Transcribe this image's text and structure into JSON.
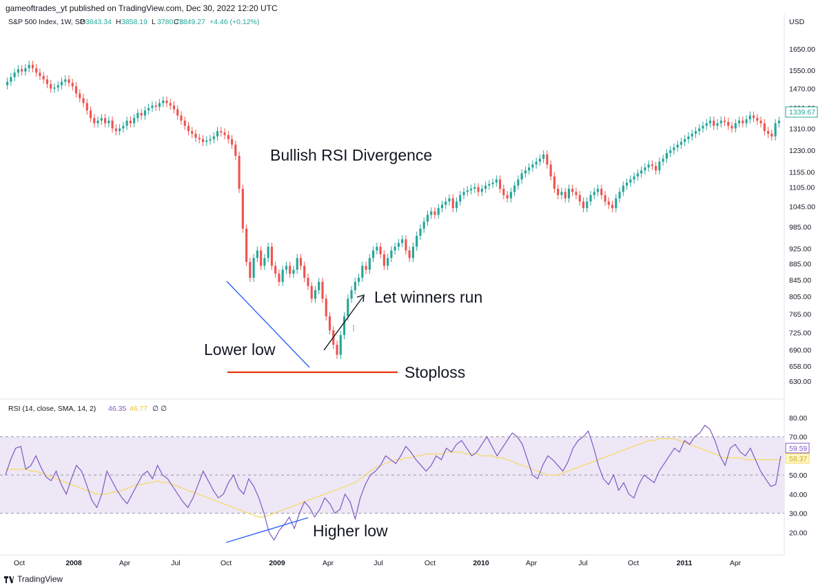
{
  "header": {
    "published": "gameoftrades_yt published on TradingView.com, Dec 30, 2022 12:20 UTC"
  },
  "legend": {
    "symbol": "S&P 500 Index, 1W, SP",
    "o_label": "O",
    "o_value": "3843.34",
    "h_label": "H",
    "h_value": "3858.19",
    "l_label": "L",
    "l_value": "3780.78",
    "c_label": "C",
    "c_value": "3849.27",
    "change": "+4.46 (+0.12%)"
  },
  "rsi_legend": {
    "label": "RSI (14, close, SMA, 14, 2)",
    "rsi_value": "46.35",
    "sma_value": "46.77",
    "extra1": "∅",
    "extra2": "∅"
  },
  "annotations": {
    "title": "Bullish RSI Divergence",
    "lower_low": "Lower low",
    "let_winners_run": "Let winners run",
    "stoploss": "Stoploss",
    "higher_low": "Higher low"
  },
  "footer": {
    "brand": "TradingView"
  },
  "colors": {
    "up": "#26a69a",
    "down": "#ef5350",
    "rsi_line": "#7e57c2",
    "rsi_sma": "#f7d85e",
    "rsi_band": "#ede7f6",
    "annotation_blue": "#2962ff",
    "stoploss_red": "#e8330d",
    "axis_text": "#131722",
    "grid": "#e0e3eb"
  },
  "chart_data": [
    {
      "type": "candlestick",
      "title": "S&P 500 Index, 1W, SP",
      "ylabel": "USD",
      "yscale": "log",
      "ylim": [
        615,
        1720
      ],
      "price_axis_ticks": [
        "1650.00",
        "1550.00",
        "1470.00",
        "1390.00",
        "1310.00",
        "1230.00",
        "1155.00",
        "1105.00",
        "1045.00",
        "985.00",
        "925.00",
        "885.00",
        "845.00",
        "805.00",
        "765.00",
        "725.00",
        "690.00",
        "658.00",
        "630.00"
      ],
      "last_price_label": "1339.67",
      "closes": [
        1500,
        1520,
        1540,
        1555,
        1545,
        1560,
        1575,
        1560,
        1540,
        1525,
        1510,
        1490,
        1470,
        1475,
        1485,
        1500,
        1510,
        1495,
        1480,
        1450,
        1430,
        1410,
        1380,
        1350,
        1330,
        1340,
        1350,
        1330,
        1340,
        1310,
        1300,
        1310,
        1320,
        1340,
        1330,
        1350,
        1370,
        1360,
        1380,
        1390,
        1400,
        1395,
        1410,
        1420,
        1410,
        1400,
        1385,
        1360,
        1340,
        1320,
        1300,
        1290,
        1275,
        1270,
        1260,
        1265,
        1270,
        1280,
        1300,
        1295,
        1285,
        1270,
        1250,
        1210,
        1100,
        980,
        890,
        850,
        900,
        920,
        880,
        900,
        930,
        880,
        860,
        840,
        870,
        880,
        860,
        870,
        900,
        880,
        850,
        830,
        800,
        820,
        840,
        800,
        760,
        730,
        700,
        680,
        720,
        760,
        800,
        820,
        840,
        850,
        880,
        870,
        900,
        920,
        930,
        910,
        880,
        900,
        920,
        930,
        940,
        950,
        920,
        900,
        930,
        960,
        980,
        1000,
        1020,
        1030,
        1020,
        1040,
        1050,
        1060,
        1070,
        1040,
        1060,
        1080,
        1090,
        1095,
        1100,
        1105,
        1090,
        1100,
        1110,
        1115,
        1120,
        1130,
        1100,
        1080,
        1070,
        1090,
        1110,
        1130,
        1150,
        1160,
        1170,
        1180,
        1190,
        1200,
        1215,
        1180,
        1140,
        1100,
        1080,
        1090,
        1070,
        1100,
        1090,
        1080,
        1060,
        1040,
        1060,
        1080,
        1090,
        1100,
        1080,
        1060,
        1050,
        1040,
        1070,
        1090,
        1110,
        1120,
        1130,
        1140,
        1150,
        1160,
        1170,
        1180,
        1175,
        1160,
        1190,
        1200,
        1220,
        1230,
        1240,
        1250,
        1260,
        1270,
        1280,
        1290,
        1300,
        1310,
        1320,
        1330,
        1340,
        1320,
        1330,
        1340,
        1335,
        1320,
        1310,
        1330,
        1340,
        1330,
        1345,
        1360,
        1350,
        1340,
        1330,
        1300,
        1290,
        1280,
        1330,
        1339.67
      ],
      "time_axis_labels": [
        "Oct",
        "2008",
        "Apr",
        "Jul",
        "Oct",
        "2009",
        "Apr",
        "Jul",
        "Oct",
        "2010",
        "Apr",
        "Jul",
        "Oct",
        "2011",
        "Apr"
      ]
    },
    {
      "type": "line",
      "title": "RSI (14, close, SMA, 14, 2)",
      "ylim": [
        10,
        85
      ],
      "bands": [
        30,
        50,
        70
      ],
      "axis_ticks": [
        "80.00",
        "70.00",
        "60.00",
        "50.00",
        "40.00",
        "30.00",
        "20.00"
      ],
      "value_labels": [
        "59.59",
        "58.37"
      ],
      "series": [
        {
          "name": "RSI",
          "values": [
            50,
            58,
            64,
            65,
            53,
            55,
            60,
            54,
            49,
            47,
            52,
            45,
            40,
            48,
            55,
            52,
            45,
            37,
            33,
            40,
            52,
            47,
            42,
            38,
            35,
            40,
            45,
            50,
            52,
            48,
            55,
            50,
            48,
            44,
            40,
            36,
            33,
            38,
            45,
            52,
            47,
            42,
            38,
            40,
            46,
            50,
            43,
            40,
            48,
            44,
            38,
            30,
            20,
            16,
            21,
            24,
            28,
            22,
            30,
            36,
            33,
            28,
            32,
            38,
            35,
            30,
            32,
            40,
            36,
            27,
            38,
            45,
            50,
            52,
            55,
            60,
            58,
            56,
            60,
            65,
            62,
            58,
            55,
            52,
            55,
            60,
            58,
            64,
            62,
            66,
            68,
            64,
            60,
            62,
            66,
            70,
            65,
            60,
            64,
            68,
            72,
            70,
            66,
            58,
            50,
            48,
            55,
            60,
            58,
            55,
            52,
            57,
            64,
            68,
            70,
            73,
            65,
            55,
            48,
            45,
            50,
            42,
            46,
            40,
            38,
            45,
            50,
            48,
            46,
            52,
            56,
            60,
            64,
            62,
            68,
            66,
            70,
            72,
            76,
            74,
            68,
            60,
            55,
            64,
            66,
            62,
            60,
            64,
            58,
            52,
            48,
            44,
            45,
            60
          ],
          "color": "#7e57c2"
        },
        {
          "name": "SMA",
          "values": [
            53,
            53,
            53,
            53,
            53,
            52,
            52,
            51,
            50,
            49,
            48,
            47,
            46,
            45,
            44,
            43,
            42,
            41,
            40,
            40,
            40,
            41,
            41,
            42,
            43,
            44,
            45,
            45,
            46,
            46,
            47,
            46,
            46,
            45,
            44,
            43,
            42,
            41,
            40,
            39,
            38,
            37,
            36,
            35,
            34,
            33,
            32,
            31,
            30,
            29,
            28,
            28,
            29,
            30,
            31,
            32,
            33,
            34,
            35,
            36,
            37,
            38,
            39,
            40,
            41,
            42,
            43,
            44,
            45,
            46,
            48,
            50,
            52,
            54,
            55,
            56,
            57,
            58,
            58,
            59,
            59,
            60,
            60,
            61,
            61,
            61,
            61,
            62,
            62,
            62,
            62,
            61,
            61,
            61,
            60,
            60,
            60,
            59,
            59,
            58,
            57,
            56,
            55,
            54,
            53,
            52,
            51,
            50,
            50,
            50,
            51,
            52,
            53,
            54,
            55,
            56,
            57,
            58,
            59,
            60,
            61,
            62,
            63,
            64,
            65,
            66,
            67,
            68,
            68,
            69,
            69,
            69,
            69,
            68,
            67,
            66,
            65,
            64,
            63,
            62,
            61,
            60,
            59,
            59,
            59,
            59,
            58,
            58,
            58,
            58,
            58,
            58,
            58,
            58
          ],
          "color": "#f7d85e"
        }
      ]
    }
  ]
}
